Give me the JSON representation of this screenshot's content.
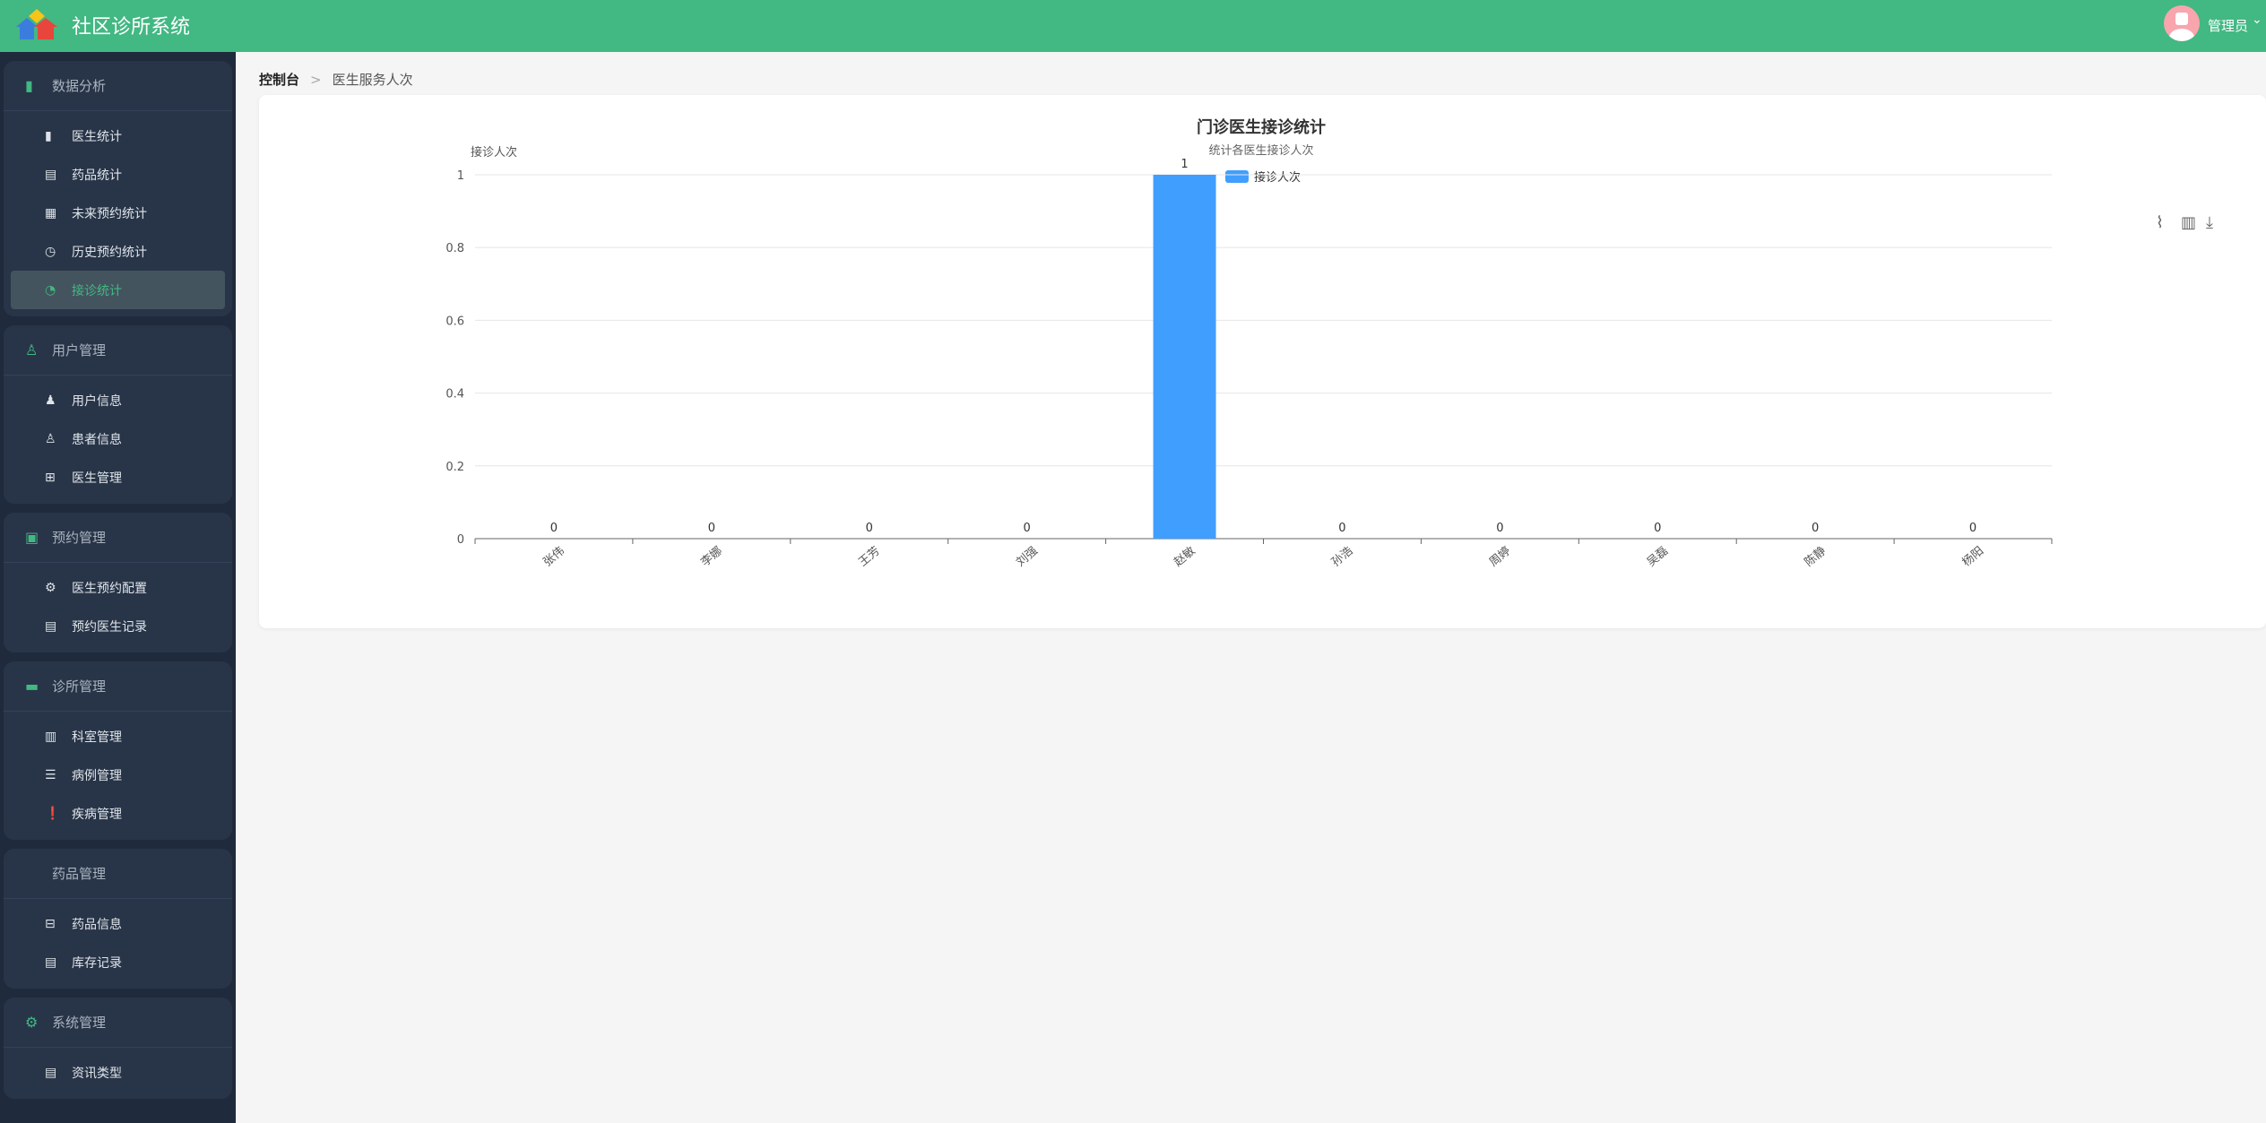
{
  "header": {
    "title": "社区诊所系统",
    "user": "管理员",
    "brand_color": "#42b883"
  },
  "breadcrumb": {
    "root": "控制台",
    "current": "医生服务人次"
  },
  "sidebar": {
    "groups": [
      {
        "label": "数据分析",
        "icon": "bar-chart-icon",
        "items": [
          {
            "label": "医生统计",
            "icon": "bar-chart-icon"
          },
          {
            "label": "药品统计",
            "icon": "document-icon"
          },
          {
            "label": "未来预约统计",
            "icon": "calendar-icon"
          },
          {
            "label": "历史预约统计",
            "icon": "clock-icon"
          },
          {
            "label": "接诊统计",
            "icon": "pie-chart-icon",
            "active": true
          }
        ]
      },
      {
        "label": "用户管理",
        "icon": "user-icon",
        "items": [
          {
            "label": "用户信息",
            "icon": "user-filled-icon"
          },
          {
            "label": "患者信息",
            "icon": "user-icon"
          },
          {
            "label": "医生管理",
            "icon": "medical-kit-icon"
          }
        ]
      },
      {
        "label": "预约管理",
        "icon": "clipboard-icon",
        "items": [
          {
            "label": "医生预约配置",
            "icon": "gear-icon"
          },
          {
            "label": "预约医生记录",
            "icon": "document-icon"
          }
        ]
      },
      {
        "label": "诊所管理",
        "icon": "monitor-icon",
        "items": [
          {
            "label": "科室管理",
            "icon": "office-icon"
          },
          {
            "label": "病例管理",
            "icon": "list-icon"
          },
          {
            "label": "疾病管理",
            "icon": "warning-icon"
          }
        ]
      },
      {
        "label": "药品管理",
        "icon": "",
        "items": [
          {
            "label": "药品信息",
            "icon": "box-icon"
          },
          {
            "label": "库存记录",
            "icon": "document-icon"
          }
        ]
      },
      {
        "label": "系统管理",
        "icon": "gear-icon",
        "items": [
          {
            "label": "资讯类型",
            "icon": "document-icon"
          }
        ]
      }
    ]
  },
  "chart_data": {
    "type": "bar",
    "title": "门诊医生接诊统计",
    "subtitle": "统计各医生接诊人次",
    "ylabel": "接诊人次",
    "xlabel": "",
    "categories": [
      "张伟",
      "李娜",
      "王芳",
      "刘强",
      "赵敏",
      "孙浩",
      "周婷",
      "吴磊",
      "陈静",
      "杨阳"
    ],
    "series": [
      {
        "name": "接诊人次",
        "values": [
          0,
          0,
          0,
          0,
          1,
          0,
          0,
          0,
          0,
          0
        ],
        "color": "#409eff"
      }
    ],
    "ylim": [
      0,
      1
    ],
    "yticks": [
      "0",
      "0.2",
      "0.4",
      "0.6",
      "0.8",
      "1"
    ],
    "grid": true,
    "legend": "top",
    "data_labels": true,
    "toolbox": [
      "line-icon",
      "bar-icon",
      "download-icon"
    ]
  }
}
